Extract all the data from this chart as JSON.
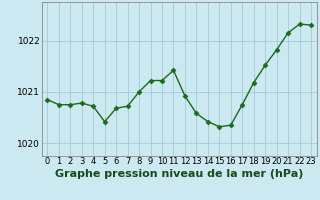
{
  "x": [
    0,
    1,
    2,
    3,
    4,
    5,
    6,
    7,
    8,
    9,
    10,
    11,
    12,
    13,
    14,
    15,
    16,
    17,
    18,
    19,
    20,
    21,
    22,
    23
  ],
  "y": [
    1020.85,
    1020.75,
    1020.75,
    1020.78,
    1020.72,
    1020.42,
    1020.68,
    1020.72,
    1021.0,
    1021.22,
    1021.22,
    1021.42,
    1020.92,
    1020.58,
    1020.42,
    1020.32,
    1020.35,
    1020.75,
    1021.18,
    1021.52,
    1021.82,
    1022.15,
    1022.32,
    1022.3
  ],
  "line_color": "#1a6b1a",
  "marker": "D",
  "markersize": 2.5,
  "linewidth": 1.0,
  "background_color": "#cce8f0",
  "grid_color": "#a0ccd8",
  "xlabel": "Graphe pression niveau de la mer (hPa)",
  "xlabel_fontsize": 8,
  "yticks": [
    1020,
    1021,
    1022
  ],
  "ylim": [
    1019.75,
    1022.75
  ],
  "xlim": [
    -0.5,
    23.5
  ],
  "xtick_labels": [
    "0",
    "1",
    "2",
    "3",
    "4",
    "5",
    "6",
    "7",
    "8",
    "9",
    "10",
    "11",
    "12",
    "13",
    "14",
    "15",
    "16",
    "17",
    "18",
    "19",
    "20",
    "21",
    "22",
    "23"
  ],
  "tick_fontsize": 6.0,
  "ytick_fontsize": 6.5
}
